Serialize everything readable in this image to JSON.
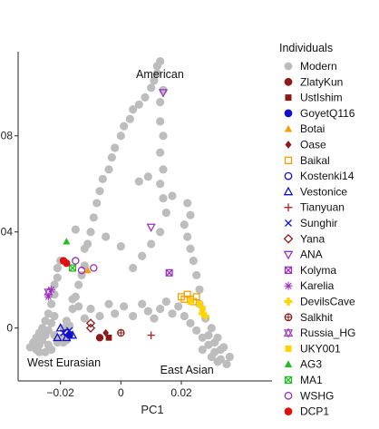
{
  "chart_data": {
    "type": "scatter",
    "xlabel": "PC1",
    "ylabel": "",
    "xlim": [
      -0.034,
      0.05
    ],
    "ylim": [
      -0.022,
      0.115
    ],
    "x_ticks": [
      -0.02,
      0,
      0.02
    ],
    "x_tick_labels": [
      "−0.02",
      "0",
      "0.02"
    ],
    "y_ticks": [
      0,
      0.04,
      0.08
    ],
    "y_tick_labels": [
      "0",
      "04",
      "08"
    ],
    "legend_title": "Individuals",
    "legend_position": "right",
    "annotations": [
      {
        "text": "American",
        "x": 0.005,
        "y": 0.104
      },
      {
        "text": "West Eurasian",
        "x": -0.031,
        "y": -0.016
      },
      {
        "text": "East Asian",
        "x": 0.013,
        "y": -0.019
      }
    ],
    "series": [
      {
        "name": "Modern",
        "marker": "circle-filled",
        "color": "#bdbdbd",
        "points": [
          [
            -0.03,
            -0.008
          ],
          [
            -0.029,
            -0.006
          ],
          [
            -0.028,
            -0.009
          ],
          [
            -0.028,
            -0.004
          ],
          [
            -0.027,
            -0.007
          ],
          [
            -0.027,
            -0.002
          ],
          [
            -0.026,
            -0.005
          ],
          [
            -0.026,
            0.0
          ],
          [
            -0.025,
            -0.003
          ],
          [
            -0.025,
            0.003
          ],
          [
            -0.024,
            -0.001
          ],
          [
            -0.024,
            0.006
          ],
          [
            -0.023,
            0.002
          ],
          [
            -0.023,
            0.01
          ],
          [
            -0.022,
            0.005
          ],
          [
            -0.022,
            0.014
          ],
          [
            -0.022,
            0.018
          ],
          [
            -0.021,
            0.021
          ],
          [
            -0.021,
            0.025
          ],
          [
            -0.02,
            0.028
          ],
          [
            -0.024,
            -0.007
          ],
          [
            -0.022,
            -0.003
          ],
          [
            -0.021,
            -0.006
          ],
          [
            -0.02,
            -0.004
          ],
          [
            -0.019,
            -0.006
          ],
          [
            -0.018,
            -0.005
          ],
          [
            -0.027,
            -0.01
          ],
          [
            -0.025,
            -0.01
          ],
          [
            -0.023,
            -0.009
          ],
          [
            -0.019,
            0.0
          ],
          [
            -0.018,
            0.003
          ],
          [
            -0.017,
            0.001
          ],
          [
            -0.016,
            0.008
          ],
          [
            -0.015,
            0.013
          ],
          [
            -0.014,
            0.018
          ],
          [
            -0.013,
            0.022
          ],
          [
            -0.012,
            0.026
          ],
          [
            -0.012,
            0.033
          ],
          [
            -0.01,
            0.04
          ],
          [
            -0.009,
            0.046
          ],
          [
            -0.008,
            0.052
          ],
          [
            -0.007,
            0.057
          ],
          [
            -0.006,
            0.062
          ],
          [
            -0.004,
            0.066
          ],
          [
            -0.003,
            0.071
          ],
          [
            -0.002,
            0.075
          ],
          [
            0.0,
            0.08
          ],
          [
            0.001,
            0.084
          ],
          [
            0.003,
            0.087
          ],
          [
            0.004,
            0.091
          ],
          [
            0.006,
            0.093
          ],
          [
            0.008,
            0.096
          ],
          [
            0.01,
            0.1
          ],
          [
            0.011,
            0.103
          ],
          [
            0.012,
            0.106
          ],
          [
            0.012,
            0.109
          ],
          [
            0.013,
            0.111
          ],
          [
            0.014,
            0.099
          ],
          [
            0.013,
            0.094
          ],
          [
            0.013,
            0.086
          ],
          [
            0.014,
            0.08
          ],
          [
            0.013,
            0.073
          ],
          [
            0.014,
            0.066
          ],
          [
            0.013,
            0.06
          ],
          [
            0.014,
            0.054
          ],
          [
            0.015,
            0.048
          ],
          [
            0.013,
            0.04
          ],
          [
            0.01,
            0.035
          ],
          [
            0.007,
            0.03
          ],
          [
            0.004,
            0.025
          ],
          [
            0.0,
            0.034
          ],
          [
            -0.005,
            0.038
          ],
          [
            -0.011,
            0.035
          ],
          [
            -0.015,
            0.041
          ],
          [
            0.006,
            0.061
          ],
          [
            0.009,
            0.063
          ],
          [
            0.017,
            0.055
          ],
          [
            0.022,
            0.052
          ],
          [
            0.023,
            0.047
          ],
          [
            0.021,
            0.043
          ],
          [
            0.022,
            0.038
          ],
          [
            0.023,
            0.033
          ],
          [
            0.024,
            0.028
          ],
          [
            0.025,
            0.022
          ],
          [
            0.026,
            0.016
          ],
          [
            0.026,
            0.01
          ],
          [
            0.028,
            0.004
          ],
          [
            0.03,
            0.0
          ],
          [
            0.032,
            -0.004
          ],
          [
            0.034,
            -0.008
          ],
          [
            0.036,
            -0.012
          ],
          [
            0.035,
            -0.015
          ],
          [
            0.033,
            -0.013
          ],
          [
            0.031,
            -0.01
          ],
          [
            0.029,
            -0.007
          ],
          [
            0.027,
            -0.004
          ],
          [
            0.025,
            -0.001
          ],
          [
            0.023,
            0.002
          ],
          [
            0.021,
            0.005
          ],
          [
            0.019,
            0.009
          ],
          [
            0.017,
            0.006
          ],
          [
            0.015,
            0.011
          ],
          [
            0.013,
            0.008
          ],
          [
            0.011,
            0.004
          ],
          [
            0.009,
            0.007
          ],
          [
            0.007,
            0.01
          ],
          [
            0.004,
            0.005
          ],
          [
            0.001,
            0.009
          ],
          [
            -0.002,
            0.006
          ],
          [
            -0.004,
            0.01
          ],
          [
            -0.007,
            0.005
          ],
          [
            -0.01,
            0.008
          ],
          [
            -0.012,
            0.004
          ],
          [
            -0.014,
            0.009
          ],
          [
            -0.016,
            0.012
          ],
          [
            0.029,
            -0.003
          ],
          [
            0.031,
            -0.006
          ],
          [
            0.033,
            -0.009
          ],
          [
            0.03,
            -0.012
          ],
          [
            0.027,
            -0.009
          ],
          [
            0.032,
            -0.014
          ]
        ]
      },
      {
        "name": "ZlatyKun",
        "marker": "circle-filled",
        "color": "#8b1a1a",
        "points": [
          [
            -0.007,
            -0.004
          ]
        ]
      },
      {
        "name": "UstIshim",
        "marker": "square-filled",
        "color": "#8b1a1a",
        "points": [
          [
            -0.004,
            -0.004
          ]
        ]
      },
      {
        "name": "GoyetQ116",
        "marker": "circle-filled",
        "color": "#1111cc",
        "points": [
          [
            -0.017,
            -0.003
          ]
        ]
      },
      {
        "name": "Botai",
        "marker": "triangle-filled",
        "color": "#f4a000",
        "points": [
          [
            -0.011,
            0.024
          ]
        ]
      },
      {
        "name": "Oase",
        "marker": "diamond-filled",
        "color": "#8b1a1a",
        "points": [
          [
            -0.005,
            -0.002
          ]
        ]
      },
      {
        "name": "Baikal",
        "marker": "square-open",
        "color": "#f4a000",
        "points": [
          [
            0.02,
            0.013
          ],
          [
            0.021,
            0.012
          ],
          [
            0.022,
            0.014
          ],
          [
            0.023,
            0.012
          ],
          [
            0.024,
            0.011
          ],
          [
            0.025,
            0.013
          ]
        ]
      },
      {
        "name": "Kostenki14",
        "marker": "circle-open",
        "color": "#1111cc",
        "points": [
          [
            -0.018,
            -0.002
          ]
        ]
      },
      {
        "name": "Vestonice",
        "marker": "triangle-open",
        "color": "#1111cc",
        "points": [
          [
            -0.02,
            0.0
          ],
          [
            -0.021,
            -0.004
          ],
          [
            -0.018,
            -0.004
          ],
          [
            -0.016,
            -0.003
          ]
        ]
      },
      {
        "name": "Tianyuan",
        "marker": "plus",
        "color": "#b22222",
        "points": [
          [
            0.01,
            -0.003
          ]
        ]
      },
      {
        "name": "Sunghir",
        "marker": "cross",
        "color": "#1111cc",
        "points": [
          [
            -0.019,
            -0.002
          ],
          [
            -0.017,
            -0.001
          ]
        ]
      },
      {
        "name": "Yana",
        "marker": "diamond-open",
        "color": "#8b1a1a",
        "points": [
          [
            -0.01,
            0.002
          ],
          [
            -0.01,
            0.0
          ]
        ]
      },
      {
        "name": "ANA",
        "marker": "triangle-down-open",
        "color": "#9b30c0",
        "points": [
          [
            0.014,
            0.098
          ],
          [
            0.01,
            0.042
          ]
        ]
      },
      {
        "name": "Kolyma",
        "marker": "square-x",
        "color": "#9b30c0",
        "points": [
          [
            0.016,
            0.023
          ]
        ]
      },
      {
        "name": "Karelia",
        "marker": "asterisk",
        "color": "#9b30c0",
        "points": [
          [
            -0.023,
            0.016
          ],
          [
            -0.024,
            0.013
          ]
        ]
      },
      {
        "name": "DevilsCave",
        "marker": "plus-filled",
        "color": "#ffd400",
        "points": [
          [
            0.027,
            0.006
          ],
          [
            0.028,
            0.005
          ]
        ]
      },
      {
        "name": "Salkhit",
        "marker": "circle-plus",
        "color": "#8b1a1a",
        "points": [
          [
            0.0,
            -0.002
          ]
        ]
      },
      {
        "name": "Russia_HG",
        "marker": "star-of-david",
        "color": "#9b30c0",
        "points": [
          [
            -0.024,
            0.015
          ]
        ]
      },
      {
        "name": "UKY001",
        "marker": "square-filled",
        "color": "#ffd400",
        "points": [
          [
            0.023,
            0.011
          ],
          [
            0.026,
            0.01
          ],
          [
            0.027,
            0.008
          ]
        ]
      },
      {
        "name": "AG3",
        "marker": "triangle-filled",
        "color": "#22bb22",
        "points": [
          [
            -0.018,
            0.036
          ]
        ]
      },
      {
        "name": "MA1",
        "marker": "square-x",
        "color": "#22bb22",
        "points": [
          [
            -0.016,
            0.025
          ]
        ]
      },
      {
        "name": "WSHG",
        "marker": "circle-open",
        "color": "#9b30c0",
        "points": [
          [
            -0.015,
            0.028
          ],
          [
            -0.013,
            0.024
          ],
          [
            -0.009,
            0.025
          ]
        ]
      },
      {
        "name": "DCP1",
        "marker": "circle-filled",
        "color": "#dd1111",
        "points": [
          [
            -0.019,
            0.028
          ],
          [
            -0.018,
            0.027
          ]
        ]
      }
    ]
  }
}
